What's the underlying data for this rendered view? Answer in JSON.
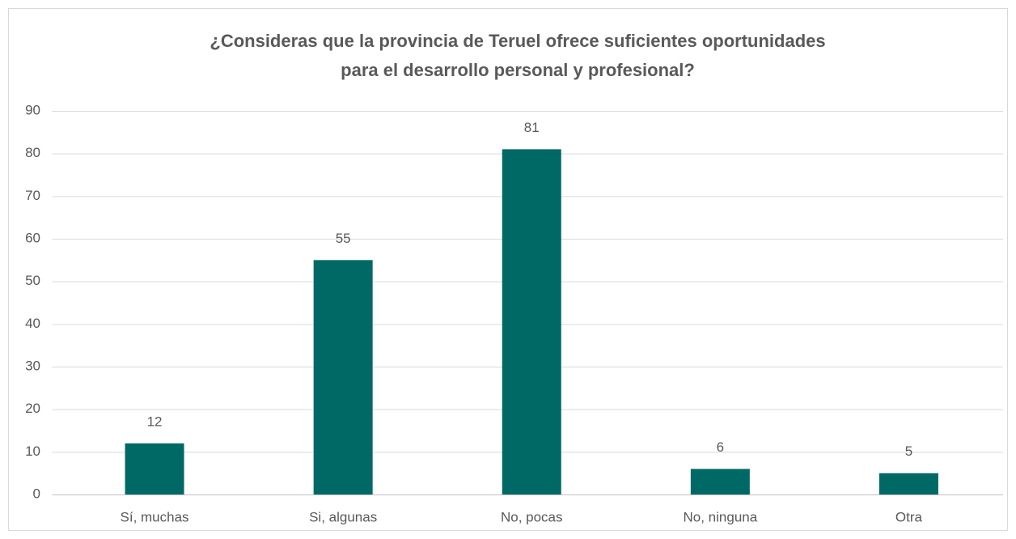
{
  "chart_data": {
    "type": "bar",
    "title": [
      "¿Consideras que la provincia de Teruel ofrece suficientes oportunidades",
      "para el desarrollo personal y profesional?"
    ],
    "categories": [
      "Sí, muchas",
      "Si, algunas",
      "No, pocas",
      "No, ninguna",
      "Otra"
    ],
    "values": [
      12,
      55,
      81,
      6,
      5
    ],
    "color": "#006966",
    "ylim": [
      0,
      90
    ],
    "yticks": [
      0,
      10,
      20,
      30,
      40,
      50,
      60,
      70,
      80,
      90
    ],
    "grid": true
  }
}
